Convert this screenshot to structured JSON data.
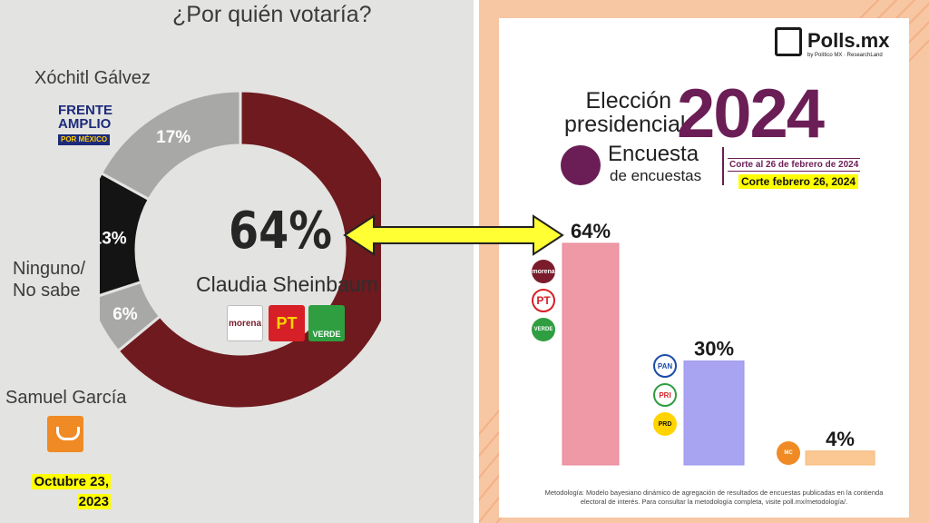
{
  "left": {
    "question": "¿Por quién votaría?",
    "candidates": {
      "xochitl": "Xóchitl Gálvez",
      "ninguno_line1": "Ninguno/",
      "ninguno_line2": "No sabe",
      "samuel": "Samuel García"
    },
    "frente_logo": {
      "line1": "FRENTE",
      "line2": "AMPLIO",
      "line3": "POR MÉXICO"
    },
    "center_pct": "64%",
    "center_name": "Claudia Sheinbaum",
    "badges": {
      "morena": "morena",
      "pt": "PT",
      "verde": "VERDE"
    },
    "date_line1": "Octubre 23,",
    "date_line2": "2023"
  },
  "right": {
    "brand": "Polls.mx",
    "brand_sub": "by Político MX · ResearchLand",
    "title_line1": "Elección",
    "title_line2": "presidencial",
    "year": "2024",
    "encuesta_title": "Encuesta",
    "encuesta_sub": "de encuestas",
    "corte_1": "Corte al 26 de febrero de 2024",
    "corte_2": "Corte febrero 26, 2024",
    "party_labels": {
      "morena": "morena",
      "pt": "PT",
      "verde": "VERDE",
      "pan": "PAN",
      "pri": "PRI",
      "prd": "PRD",
      "mc": "MC"
    },
    "metodologia": "Metodología: Modelo bayesiano dinámico de agregación de resultados de encuestas publicadas en la contienda electoral de interés. Para consultar la metodología completa, visite poll.mx/metodología/."
  },
  "colors": {
    "maroon": "#6e1a1e",
    "gray": "#a8a8a6",
    "black": "#141414",
    "pink": "#ef98a6",
    "lavender": "#a9a4f2",
    "peach": "#fbc893",
    "arrow": "#ffff33"
  },
  "chart_data": [
    {
      "type": "pie",
      "title": "¿Por quién votaría?",
      "categories": [
        "Claudia Sheinbaum",
        "Samuel García",
        "Ninguno/ No sabe",
        "Xóchitl Gálvez"
      ],
      "values": [
        64,
        6,
        13,
        17
      ],
      "labels": [
        "64%",
        "6%",
        "13%",
        "17%"
      ]
    },
    {
      "type": "bar",
      "title": "Elección presidencial 2024",
      "categories": [
        "morena PT VERDE",
        "PAN PRI PRD",
        "MC"
      ],
      "values": [
        64,
        30,
        4
      ],
      "labels": [
        "64%",
        "30%",
        "4%"
      ],
      "ylim": [
        0,
        64
      ]
    }
  ]
}
